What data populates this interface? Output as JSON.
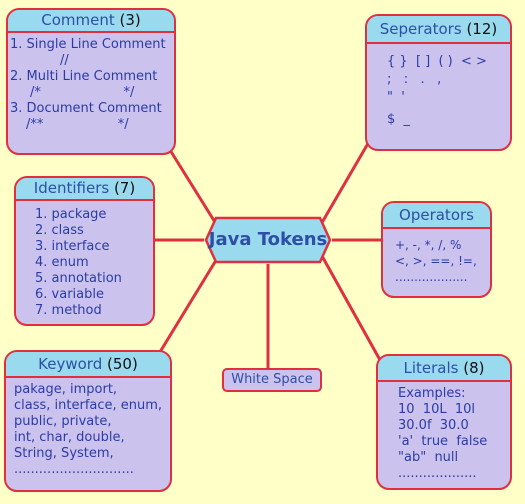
{
  "center": {
    "label": "Java Tokens"
  },
  "comment": {
    "title": "Comment",
    "count": "(3)",
    "lines": [
      "1. Single Line Comment",
      "//",
      "2. Multi Line Comment",
      "/*                    */",
      "3. Document Comment",
      "/**                  */"
    ]
  },
  "identifiers": {
    "title": "Identifiers",
    "count": "(7)",
    "lines": [
      "1. package",
      "2. class",
      "3. interface",
      "4. enum",
      "5. annotation",
      "6. variable",
      "7. method"
    ]
  },
  "keyword": {
    "title": "Keyword",
    "count": "(50)",
    "lines": [
      "pakage, import,",
      "class, interface, enum,",
      "public, private,",
      "int, char, double,",
      "String, System,",
      "............................."
    ]
  },
  "separators": {
    "title": "Seperators",
    "count": "(12)",
    "lines": [
      "{ }  [ ]  ( )  < >",
      ";   :   .   ,",
      "\"  '",
      "$  _"
    ]
  },
  "operators": {
    "title": "Operators",
    "lines": [
      "+, -, *, /, %",
      "<, >, ==, !=,",
      "..................."
    ]
  },
  "literals": {
    "title": "Literals",
    "count": "(8)",
    "lines": [
      "Examples:",
      "10  10L  10l",
      "30.0f  30.0",
      "'a'  true  false",
      "\"ab\"  null",
      "..................."
    ]
  },
  "white_space": {
    "label": "White Space"
  },
  "colors": {
    "background": "#FFFFC8",
    "box_fill": "#CCC2EE",
    "header_fill": "#9ADAEE",
    "border": "#E03040",
    "text": "#2A3CA8"
  }
}
